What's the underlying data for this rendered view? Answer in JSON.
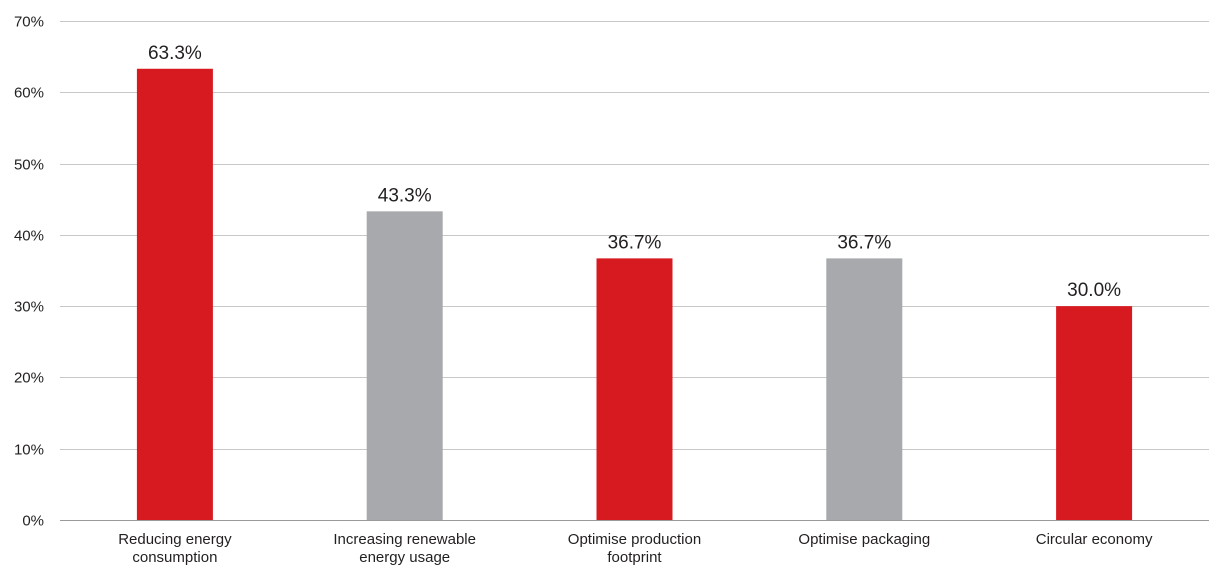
{
  "chart_data": {
    "type": "bar",
    "categories": [
      "Reducing energy consumption",
      "Increasing renewable energy usage",
      "Optimise production footprint",
      "Optimise packaging",
      "Circular economy"
    ],
    "category_label_lines": [
      [
        "Reducing energy",
        "consumption"
      ],
      [
        "Increasing renewable",
        "energy usage"
      ],
      [
        "Optimise production",
        "footprint"
      ],
      [
        "Optimise packaging"
      ],
      [
        "Circular economy"
      ]
    ],
    "values": [
      63.3,
      43.3,
      36.7,
      36.7,
      30.0
    ],
    "data_labels": [
      "63.3%",
      "43.3%",
      "36.7%",
      "36.7%",
      "30.0%"
    ],
    "bar_colors": [
      "#d71920",
      "#a7a9ac",
      "#d71920",
      "#a7a9ac",
      "#d71920"
    ],
    "ylim": [
      0,
      70
    ],
    "yticks": [
      0,
      10,
      20,
      30,
      40,
      50,
      60,
      70
    ],
    "ytick_labels": [
      "0%",
      "10%",
      "20%",
      "30%",
      "40%",
      "50%",
      "60%",
      "70%"
    ],
    "grid": true,
    "grid_color": "#c8c8c8",
    "title": "",
    "xlabel": "",
    "ylabel": ""
  }
}
